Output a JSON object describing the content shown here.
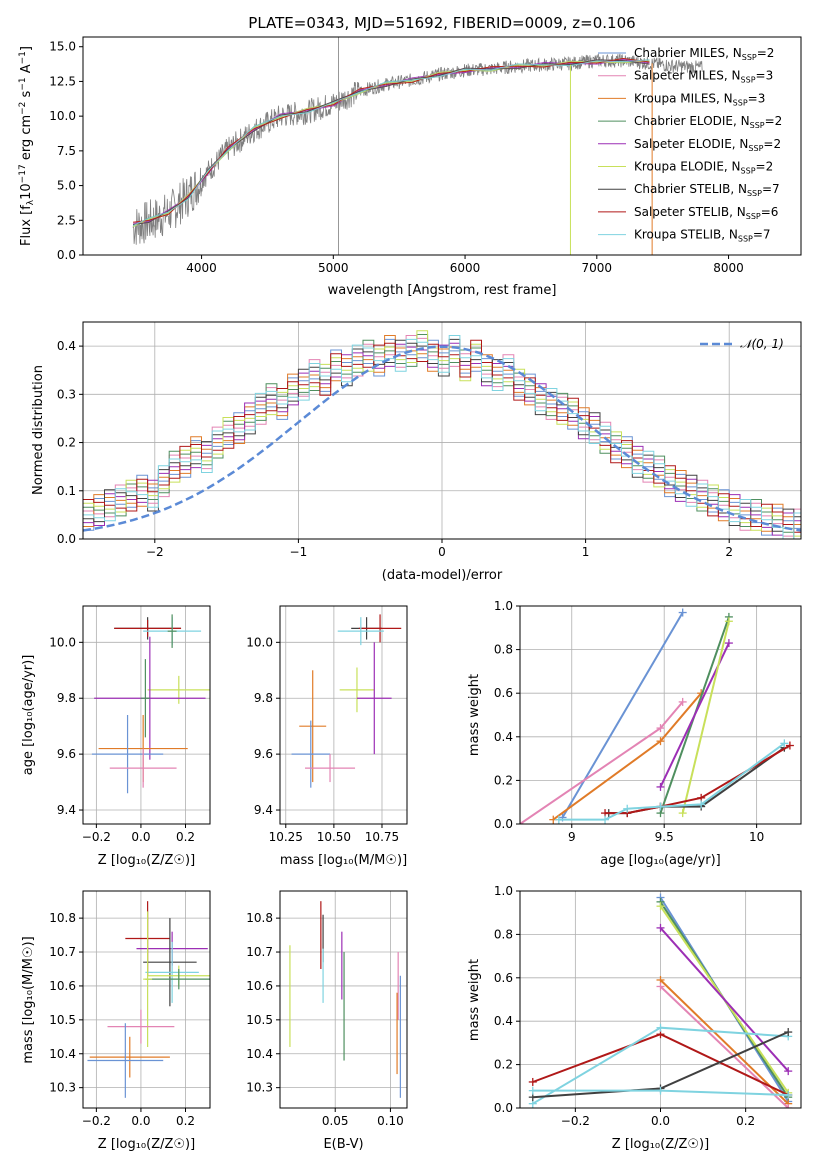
{
  "chart_data": [
    {
      "id": "spectrum",
      "type": "line",
      "title": "PLATE=0343, MJD=51692, FIBERID=0009, z=0.106",
      "xlabel": "wavelength [Angstrom, rest frame]",
      "ylabel_parts": [
        "Flux [f",
        "λ",
        "10",
        "−17",
        " erg cm",
        "−2",
        " s",
        "−1",
        " A",
        "−1",
        "]"
      ],
      "xlim": [
        3100,
        8550
      ],
      "ylim": [
        0,
        15.7
      ],
      "xticks": [
        4000,
        5000,
        6000,
        7000,
        8000
      ],
      "yticks": [
        0.0,
        2.5,
        5.0,
        7.5,
        10.0,
        12.5,
        15.0
      ],
      "grid": false,
      "legend_position": "upper-right",
      "data_series": {
        "name": "data",
        "color": "#7f7f7f",
        "x": [
          3480,
          3600,
          3750,
          3900,
          4050,
          4200,
          4400,
          4600,
          4800,
          5000,
          5200,
          5400,
          5600,
          5800,
          6000,
          6200,
          6400,
          6600,
          6800,
          7000,
          7200,
          7400,
          7600,
          7800
        ],
        "y": [
          2.0,
          2.4,
          3.0,
          4.3,
          6.0,
          7.6,
          9.0,
          10.0,
          10.3,
          10.9,
          11.8,
          12.3,
          12.6,
          13.0,
          13.3,
          13.4,
          13.6,
          13.7,
          13.8,
          14.0,
          14.0,
          13.8,
          13.6,
          13.5
        ]
      },
      "model_x": [
        3480,
        3600,
        3750,
        3900,
        4050,
        4200,
        4400,
        4600,
        4800,
        5000,
        5200,
        5400,
        5600,
        5800,
        6000,
        6200,
        6400,
        6600,
        6800,
        7000,
        7200,
        7400
      ],
      "model_y": [
        2.2,
        2.5,
        3.1,
        4.2,
        6.0,
        7.6,
        9.1,
        10.0,
        10.4,
        10.9,
        11.8,
        12.3,
        12.6,
        13.0,
        13.3,
        13.4,
        13.6,
        13.7,
        13.8,
        13.9,
        14.0,
        13.9
      ],
      "legend": [
        {
          "name": "Chabrier MILES",
          "nssp": "2",
          "color": "#6a93d4"
        },
        {
          "name": "Salpeter MILES",
          "nssp": "3",
          "color": "#e384b4"
        },
        {
          "name": "Kroupa MILES",
          "nssp": "3",
          "color": "#e07b28"
        },
        {
          "name": "Chabrier ELODIE",
          "nssp": "2",
          "color": "#4f8f5f"
        },
        {
          "name": "Salpeter ELODIE",
          "nssp": "2",
          "color": "#9c2fb5"
        },
        {
          "name": "Kroupa ELODIE",
          "nssp": "2",
          "color": "#c8e05a"
        },
        {
          "name": "Chabrier STELIB",
          "nssp": "7",
          "color": "#404040"
        },
        {
          "name": "Salpeter STELIB",
          "nssp": "6",
          "color": "#b01818"
        },
        {
          "name": "Kroupa STELIB",
          "nssp": "7",
          "color": "#7fd3e0"
        }
      ],
      "nssp_label": "N",
      "nssp_sub": "SSP"
    },
    {
      "id": "residuals",
      "type": "line",
      "xlabel": "(data-model)/error",
      "ylabel": "Normed distribution",
      "xlim": [
        -2.5,
        2.5
      ],
      "ylim": [
        0,
        0.45
      ],
      "xticks": [
        -2,
        -1,
        0,
        1,
        2
      ],
      "xtick_labels": [
        "−2",
        "−1",
        "0",
        "1",
        "2"
      ],
      "yticks": [
        0.0,
        0.1,
        0.2,
        0.3,
        0.4
      ],
      "grid": true,
      "legend_position": "upper-right",
      "legend_label": "𝒩(0, 1)",
      "gaussian_color": "#5b8ad6",
      "bin_width": 0.1,
      "bin_start": -2.5,
      "hist": [
        0.05,
        0.06,
        0.07,
        0.08,
        0.09,
        0.1,
        0.09,
        0.12,
        0.15,
        0.16,
        0.18,
        0.17,
        0.2,
        0.22,
        0.23,
        0.25,
        0.27,
        0.29,
        0.28,
        0.31,
        0.32,
        0.34,
        0.33,
        0.36,
        0.35,
        0.37,
        0.38,
        0.37,
        0.39,
        0.38,
        0.39,
        0.4,
        0.38,
        0.37,
        0.39,
        0.36,
        0.38,
        0.35,
        0.34,
        0.35,
        0.32,
        0.31,
        0.29,
        0.28,
        0.27,
        0.26,
        0.24,
        0.23,
        0.21,
        0.19,
        0.18,
        0.16,
        0.15,
        0.14,
        0.12,
        0.11,
        0.1,
        0.09,
        0.08,
        0.07,
        0.06,
        0.05,
        0.05,
        0.04,
        0.04,
        0.03,
        0.03,
        0.03,
        0.02,
        0.02
      ]
    },
    {
      "id": "age-vs-Z",
      "type": "scatter",
      "xlabel": "Z [log₁₀(Z/Z☉)]",
      "ylabel": "age  [log₁₀(age/yr)]",
      "xlim": [
        -0.26,
        0.31
      ],
      "ylim": [
        9.35,
        10.13
      ],
      "xticks": [
        -0.2,
        0.0,
        0.2
      ],
      "xtick_labels": [
        "−0.2",
        "0.0",
        "0.2"
      ],
      "yticks": [
        9.4,
        9.6,
        9.8,
        10.0
      ],
      "grid": true,
      "points": [
        {
          "x": 0.03,
          "y": 10.05,
          "ex": 0.15,
          "ey": 0.04,
          "color": "#404040"
        },
        {
          "x": 0.03,
          "y": 10.05,
          "ex": 0.15,
          "ey": 0.03,
          "color": "#b01818"
        },
        {
          "x": 0.14,
          "y": 10.04,
          "ex": 0.13,
          "ey": 0.05,
          "color": "#7fd3e0"
        },
        {
          "x": 0.14,
          "y": 10.04,
          "ex": 0.02,
          "ey": 0.06,
          "color": "#4f8f5f"
        },
        {
          "x": 0.17,
          "y": 9.83,
          "ex": 0.14,
          "ey": 0.05,
          "color": "#c8e05a"
        },
        {
          "x": 0.04,
          "y": 9.8,
          "ex": 0.25,
          "ey": 0.22,
          "color": "#9c2fb5"
        },
        {
          "x": 0.02,
          "y": 9.8,
          "ex": 0.02,
          "ey": 0.14,
          "color": "#4f8f5f"
        },
        {
          "x": 0.01,
          "y": 9.62,
          "ex": 0.2,
          "ey": 0.12,
          "color": "#e07b28"
        },
        {
          "x": -0.06,
          "y": 9.6,
          "ex": 0.16,
          "ey": 0.14,
          "color": "#6a93d4"
        },
        {
          "x": 0.01,
          "y": 9.55,
          "ex": 0.15,
          "ey": 0.07,
          "color": "#e384b4"
        }
      ]
    },
    {
      "id": "age-vs-mass",
      "type": "scatter",
      "xlabel": "mass [log₁₀(M/M☉)]",
      "xlim": [
        10.22,
        10.88
      ],
      "ylim": [
        9.35,
        10.13
      ],
      "xticks": [
        10.25,
        10.5,
        10.75
      ],
      "xtick_labels": [
        "10.25",
        "10.50",
        "10.75"
      ],
      "yticks": [
        9.4,
        9.6,
        9.8,
        10.0
      ],
      "grid": true,
      "points": [
        {
          "x": 10.67,
          "y": 10.05,
          "ex": 0.08,
          "ey": 0.04,
          "color": "#404040"
        },
        {
          "x": 10.74,
          "y": 10.05,
          "ex": 0.11,
          "ey": 0.05,
          "color": "#b01818"
        },
        {
          "x": 10.64,
          "y": 10.04,
          "ex": 0.12,
          "ey": 0.05,
          "color": "#7fd3e0"
        },
        {
          "x": 10.62,
          "y": 9.83,
          "ex": 0.09,
          "ey": 0.08,
          "color": "#c8e05a"
        },
        {
          "x": 10.71,
          "y": 9.8,
          "ex": 0.09,
          "ey": 0.2,
          "color": "#9c2fb5"
        },
        {
          "x": 10.39,
          "y": 9.7,
          "ex": 0.07,
          "ey": 0.2,
          "color": "#e07b28"
        },
        {
          "x": 10.38,
          "y": 9.6,
          "ex": 0.1,
          "ey": 0.12,
          "color": "#6a93d4"
        },
        {
          "x": 10.48,
          "y": 9.55,
          "ex": 0.13,
          "ey": 0.05,
          "color": "#e384b4"
        }
      ]
    },
    {
      "id": "massweight-vs-age",
      "type": "line",
      "xlabel": "age  [log₁₀(age/yr)]",
      "ylabel": "mass weight",
      "xlim": [
        8.72,
        10.24
      ],
      "ylim": [
        0,
        1.0
      ],
      "xticks": [
        9.0,
        9.5,
        10.0
      ],
      "yticks": [
        0.0,
        0.2,
        0.4,
        0.6,
        0.8,
        1.0
      ],
      "grid": true,
      "series": [
        {
          "color": "#6a93d4",
          "x": [
            8.95,
            9.6
          ],
          "y": [
            0.03,
            0.97
          ]
        },
        {
          "color": "#e384b4",
          "x": [
            8.72,
            9.48,
            9.6
          ],
          "y": [
            0.0,
            0.44,
            0.56
          ]
        },
        {
          "color": "#e07b28",
          "x": [
            8.9,
            9.48,
            9.7
          ],
          "y": [
            0.02,
            0.38,
            0.6
          ]
        },
        {
          "color": "#4f8f5f",
          "x": [
            9.48,
            9.85
          ],
          "y": [
            0.05,
            0.95
          ]
        },
        {
          "color": "#9c2fb5",
          "x": [
            9.48,
            9.85
          ],
          "y": [
            0.17,
            0.83
          ]
        },
        {
          "color": "#c8e05a",
          "x": [
            9.6,
            9.85
          ],
          "y": [
            0.05,
            0.93
          ]
        },
        {
          "color": "#404040",
          "x": [
            9.2,
            9.3,
            9.48,
            9.7,
            10.15
          ],
          "y": [
            0.05,
            0.05,
            0.08,
            0.08,
            0.35
          ]
        },
        {
          "color": "#b01818",
          "x": [
            9.18,
            9.3,
            9.48,
            9.7,
            10.18
          ],
          "y": [
            0.05,
            0.05,
            0.08,
            0.12,
            0.36
          ]
        },
        {
          "color": "#7fd3e0",
          "x": [
            8.93,
            9.18,
            9.3,
            9.48,
            9.7,
            10.15
          ],
          "y": [
            0.02,
            0.02,
            0.07,
            0.08,
            0.09,
            0.37
          ]
        }
      ]
    },
    {
      "id": "mass-vs-Z",
      "type": "scatter",
      "xlabel": "Z [log₁₀(Z/Z☉)]",
      "ylabel": "mass [log₁₀(M/M☉)]",
      "xlim": [
        -0.26,
        0.31
      ],
      "ylim": [
        10.24,
        10.88
      ],
      "xticks": [
        -0.2,
        0.0,
        0.2
      ],
      "xtick_labels": [
        "−0.2",
        "0.0",
        "0.2"
      ],
      "yticks": [
        10.3,
        10.4,
        10.5,
        10.6,
        10.7,
        10.8
      ],
      "grid": true,
      "points": [
        {
          "x": 0.03,
          "y": 10.74,
          "ex": 0.1,
          "ey": 0.11,
          "color": "#b01818"
        },
        {
          "x": 0.14,
          "y": 10.71,
          "ex": 0.16,
          "ey": 0.05,
          "color": "#9c2fb5"
        },
        {
          "x": 0.13,
          "y": 10.67,
          "ex": 0.12,
          "ey": 0.13,
          "color": "#404040"
        },
        {
          "x": 0.14,
          "y": 10.64,
          "ex": 0.12,
          "ey": 0.09,
          "color": "#7fd3e0"
        },
        {
          "x": 0.17,
          "y": 10.63,
          "ex": 0.14,
          "ey": 0.03,
          "color": "#c8e05a"
        },
        {
          "x": 0.17,
          "y": 10.62,
          "ex": 0.15,
          "ey": 0.03,
          "color": "#4f8f5f"
        },
        {
          "x": 0.03,
          "y": 10.62,
          "ex": 0.02,
          "ey": 0.2,
          "color": "#c8e05a"
        },
        {
          "x": 0.0,
          "y": 10.48,
          "ex": 0.15,
          "ey": 0.05,
          "color": "#e384b4"
        },
        {
          "x": -0.05,
          "y": 10.39,
          "ex": 0.18,
          "ey": 0.06,
          "color": "#e07b28"
        },
        {
          "x": -0.07,
          "y": 10.38,
          "ex": 0.17,
          "ey": 0.11,
          "color": "#6a93d4"
        }
      ]
    },
    {
      "id": "mass-vs-EBV",
      "type": "scatter",
      "xlabel": "E(B-V)",
      "xlim": [
        0.0,
        0.115
      ],
      "ylim": [
        10.24,
        10.88
      ],
      "xticks": [
        0.05,
        0.1
      ],
      "xtick_labels": [
        "0.05",
        "0.10"
      ],
      "yticks": [
        10.3,
        10.4,
        10.5,
        10.6,
        10.7,
        10.8
      ],
      "grid": true,
      "points": [
        {
          "x": 0.037,
          "y": 10.75,
          "ey": 0.1,
          "color": "#b01818"
        },
        {
          "x": 0.039,
          "y": 10.74,
          "ey": 0.07,
          "color": "#404040"
        },
        {
          "x": 0.056,
          "y": 10.66,
          "ey": 0.1,
          "color": "#9c2fb5"
        },
        {
          "x": 0.058,
          "y": 10.54,
          "ey": 0.16,
          "color": "#4f8f5f"
        },
        {
          "x": 0.039,
          "y": 10.63,
          "ey": 0.08,
          "color": "#7fd3e0"
        },
        {
          "x": 0.009,
          "y": 10.57,
          "ey": 0.15,
          "color": "#c8e05a"
        },
        {
          "x": 0.107,
          "y": 10.6,
          "ey": 0.1,
          "color": "#e384b4"
        },
        {
          "x": 0.106,
          "y": 10.46,
          "ey": 0.12,
          "color": "#e07b28"
        },
        {
          "x": 0.109,
          "y": 10.45,
          "ey": 0.18,
          "color": "#6a93d4"
        }
      ]
    },
    {
      "id": "massweight-vs-Z",
      "type": "line",
      "xlabel": "Z [log₁₀(Z/Z☉)]",
      "ylabel": "mass weight",
      "xlim": [
        -0.33,
        0.33
      ],
      "ylim": [
        0,
        1.0
      ],
      "xticks": [
        -0.2,
        0.0,
        0.2
      ],
      "xtick_labels": [
        "−0.2",
        "0.0",
        "0.2"
      ],
      "yticks": [
        0.0,
        0.2,
        0.4,
        0.6,
        0.8,
        1.0
      ],
      "grid": true,
      "series": [
        {
          "color": "#6a93d4",
          "x": [
            0.0,
            0.3
          ],
          "y": [
            0.97,
            0.03
          ]
        },
        {
          "color": "#4f8f5f",
          "x": [
            0.0,
            0.3
          ],
          "y": [
            0.95,
            0.05
          ]
        },
        {
          "color": "#c8e05a",
          "x": [
            0.0,
            0.3
          ],
          "y": [
            0.93,
            0.07
          ]
        },
        {
          "color": "#9c2fb5",
          "x": [
            0.0,
            0.3
          ],
          "y": [
            0.83,
            0.17
          ]
        },
        {
          "color": "#e07b28",
          "x": [
            0.0,
            0.3
          ],
          "y": [
            0.59,
            0.02
          ]
        },
        {
          "color": "#e384b4",
          "x": [
            0.0,
            0.3
          ],
          "y": [
            0.56,
            0.0
          ]
        },
        {
          "color": "#b01818",
          "x": [
            -0.3,
            0.0,
            0.3
          ],
          "y": [
            0.12,
            0.34,
            0.06
          ]
        },
        {
          "color": "#7fd3e0",
          "x": [
            -0.3,
            0.0,
            0.3
          ],
          "y": [
            0.02,
            0.37,
            0.33
          ]
        },
        {
          "color": "#404040",
          "x": [
            -0.3,
            0.0,
            0.3
          ],
          "y": [
            0.05,
            0.09,
            0.35
          ]
        },
        {
          "color": "#7fd3e0",
          "x": [
            -0.3,
            0.0,
            0.3
          ],
          "y": [
            0.08,
            0.08,
            0.06
          ]
        }
      ]
    }
  ]
}
